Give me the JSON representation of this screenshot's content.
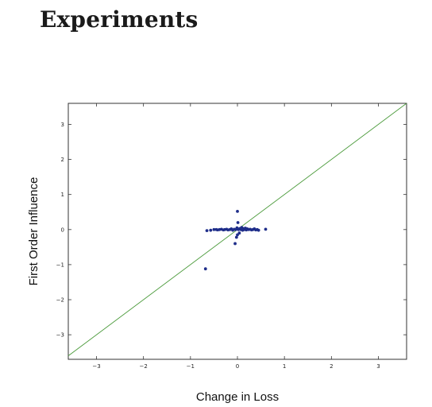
{
  "page": {
    "heading": "Experiments"
  },
  "chart_data": {
    "type": "scatter",
    "title": "",
    "xlabel": "Change in Loss",
    "ylabel": "First Order Influence",
    "xlim": [
      -3.6,
      3.6
    ],
    "ylim": [
      -3.7,
      3.6
    ],
    "xticks": [
      -3,
      -2,
      -1,
      0,
      1,
      2,
      3
    ],
    "yticks": [
      3,
      2,
      1,
      0,
      -1,
      -2,
      -3
    ],
    "grid": false,
    "legend": "none",
    "colors": {
      "points": "#1f2e8a",
      "reference_line": "#4a9a3a",
      "frame": "#333333"
    },
    "reference_line": {
      "label": "",
      "slope": 1,
      "intercept": 0
    },
    "points": [
      {
        "x": -0.68,
        "y": -1.12
      },
      {
        "x": -0.65,
        "y": -0.03
      },
      {
        "x": -0.57,
        "y": -0.02
      },
      {
        "x": -0.5,
        "y": 0.0
      },
      {
        "x": -0.45,
        "y": 0.0
      },
      {
        "x": -0.42,
        "y": -0.01
      },
      {
        "x": -0.38,
        "y": 0.0
      },
      {
        "x": -0.34,
        "y": 0.01
      },
      {
        "x": -0.3,
        "y": -0.01
      },
      {
        "x": -0.27,
        "y": 0.0
      },
      {
        "x": -0.23,
        "y": 0.01
      },
      {
        "x": -0.2,
        "y": -0.01
      },
      {
        "x": -0.16,
        "y": 0.0
      },
      {
        "x": -0.13,
        "y": 0.02
      },
      {
        "x": -0.1,
        "y": -0.02
      },
      {
        "x": -0.07,
        "y": 0.01
      },
      {
        "x": -0.05,
        "y": -0.4
      },
      {
        "x": -0.04,
        "y": 0.0
      },
      {
        "x": -0.02,
        "y": -0.22
      },
      {
        "x": -0.01,
        "y": 0.05
      },
      {
        "x": 0.0,
        "y": -0.15
      },
      {
        "x": 0.01,
        "y": 0.2
      },
      {
        "x": 0.0,
        "y": 0.52
      },
      {
        "x": 0.02,
        "y": 0.0
      },
      {
        "x": 0.04,
        "y": -0.1
      },
      {
        "x": 0.05,
        "y": 0.03
      },
      {
        "x": 0.07,
        "y": 0.0
      },
      {
        "x": 0.09,
        "y": 0.06
      },
      {
        "x": 0.11,
        "y": -0.02
      },
      {
        "x": 0.13,
        "y": 0.03
      },
      {
        "x": 0.15,
        "y": 0.0
      },
      {
        "x": 0.17,
        "y": 0.04
      },
      {
        "x": 0.19,
        "y": -0.01
      },
      {
        "x": 0.21,
        "y": 0.02
      },
      {
        "x": 0.24,
        "y": 0.0
      },
      {
        "x": 0.27,
        "y": 0.01
      },
      {
        "x": 0.3,
        "y": -0.01
      },
      {
        "x": 0.33,
        "y": 0.0
      },
      {
        "x": 0.36,
        "y": 0.02
      },
      {
        "x": 0.39,
        "y": -0.01
      },
      {
        "x": 0.42,
        "y": 0.0
      },
      {
        "x": 0.45,
        "y": -0.02
      },
      {
        "x": 0.6,
        "y": 0.01
      }
    ]
  }
}
